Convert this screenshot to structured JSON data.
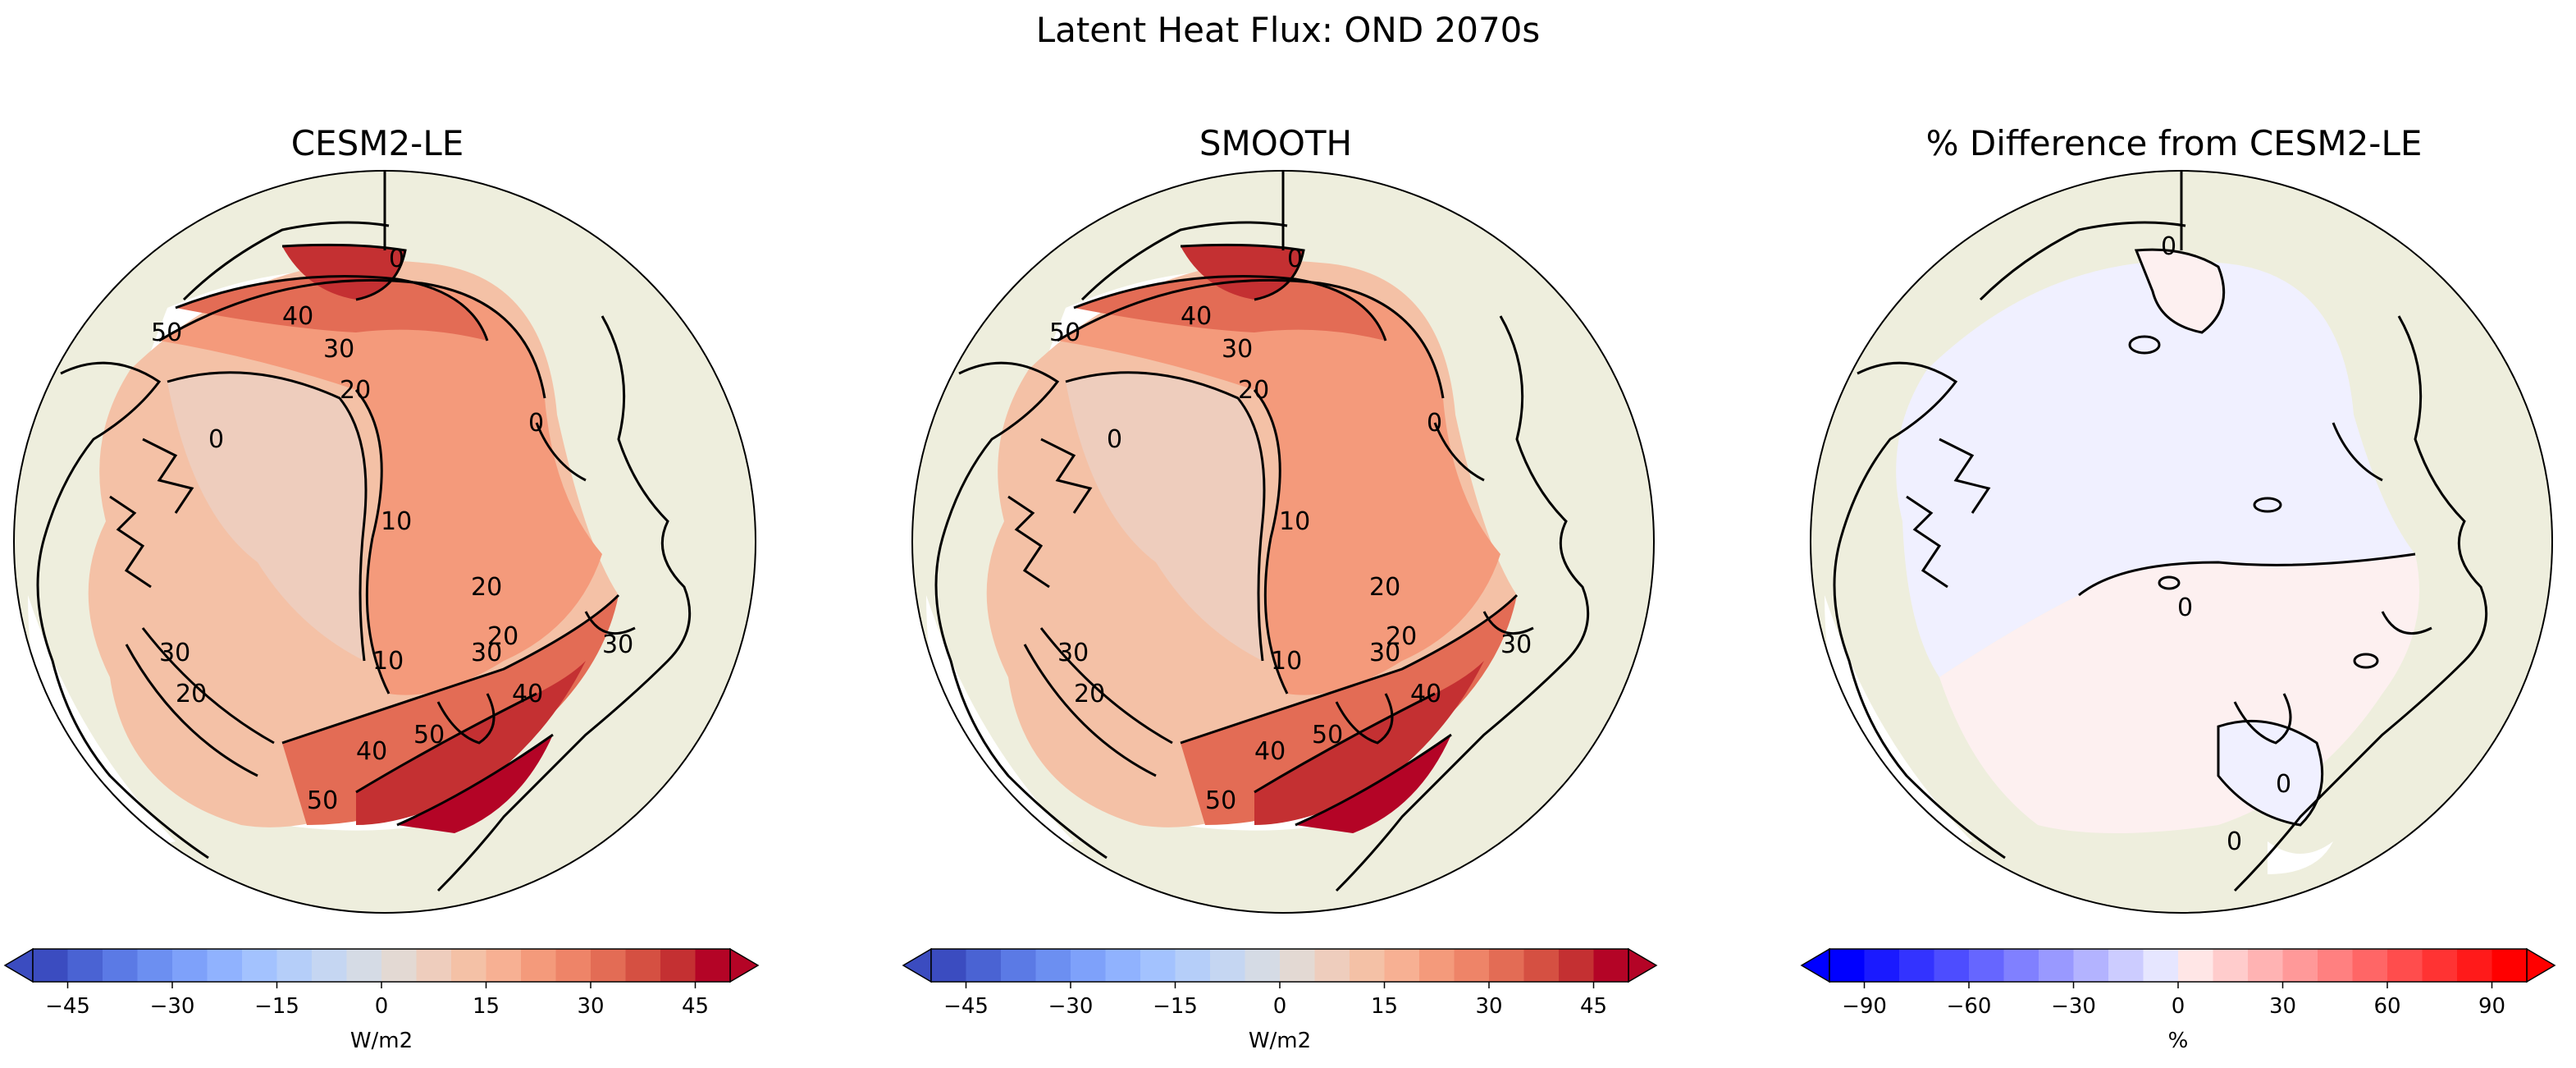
{
  "figure": {
    "title": "Latent Heat Flux: OND 2070s"
  },
  "colors": {
    "land": "#eeeedd",
    "coastline": "#000000",
    "rdbu_levels": [
      "#3b4cc0",
      "#4a63d3",
      "#5b7ae5",
      "#6c8ff1",
      "#7ea1fa",
      "#90b2fe",
      "#a3c2fe",
      "#b5cef9",
      "#c5d6f2",
      "#d5dbe5",
      "#e3d9d3",
      "#eecdbd",
      "#f4c1a6",
      "#f7b093",
      "#f49a7b",
      "#ee8468",
      "#e36c55",
      "#d55042",
      "#c43032",
      "#b40426"
    ],
    "bwr_levels": [
      "#0000ff",
      "#1a1aff",
      "#3333ff",
      "#4d4dff",
      "#6666ff",
      "#8080ff",
      "#9999ff",
      "#b3b3ff",
      "#ccccff",
      "#e6e6ff",
      "#ffe6e6",
      "#ffcccc",
      "#ffb3b3",
      "#ff9999",
      "#ff8080",
      "#ff6666",
      "#ff4d4d",
      "#ff3333",
      "#ff1a1a",
      "#ff0000"
    ]
  },
  "panels": [
    {
      "title": "CESM2-LE",
      "contour_labels": [
        "50",
        "40",
        "30",
        "20",
        "10",
        "0",
        "30",
        "20",
        "10",
        "20",
        "30",
        "40",
        "50",
        "20",
        "30",
        "40",
        "50",
        "0",
        "0"
      ],
      "colorbar": {
        "ticks": [
          "−45",
          "−30",
          "−15",
          "0",
          "15",
          "30",
          "45"
        ],
        "tick_values": [
          -45,
          -30,
          -15,
          0,
          15,
          30,
          45
        ],
        "range": [
          -50,
          50
        ],
        "label": "W/m2",
        "colormap": "RdBu_r",
        "extend": "both"
      }
    },
    {
      "title": "SMOOTH",
      "contour_labels": [
        "50",
        "40",
        "30",
        "20",
        "10",
        "0",
        "30",
        "20",
        "10",
        "20",
        "30",
        "40",
        "50",
        "20",
        "30",
        "40",
        "50",
        "0",
        "0"
      ],
      "colorbar": {
        "ticks": [
          "−45",
          "−30",
          "−15",
          "0",
          "15",
          "30",
          "45"
        ],
        "tick_values": [
          -45,
          -30,
          -15,
          0,
          15,
          30,
          45
        ],
        "range": [
          -50,
          50
        ],
        "label": "W/m2",
        "colormap": "RdBu_r",
        "extend": "both"
      }
    },
    {
      "title": "% Difference from CESM2-LE",
      "contour_labels": [
        "0",
        "0",
        "0",
        "0"
      ],
      "colorbar": {
        "ticks": [
          "−90",
          "−60",
          "−30",
          "0",
          "30",
          "60",
          "90"
        ],
        "tick_values": [
          -90,
          -60,
          -30,
          0,
          30,
          60,
          90
        ],
        "range": [
          -100,
          100
        ],
        "label": "%",
        "colormap": "bwr",
        "extend": "both"
      }
    }
  ]
}
